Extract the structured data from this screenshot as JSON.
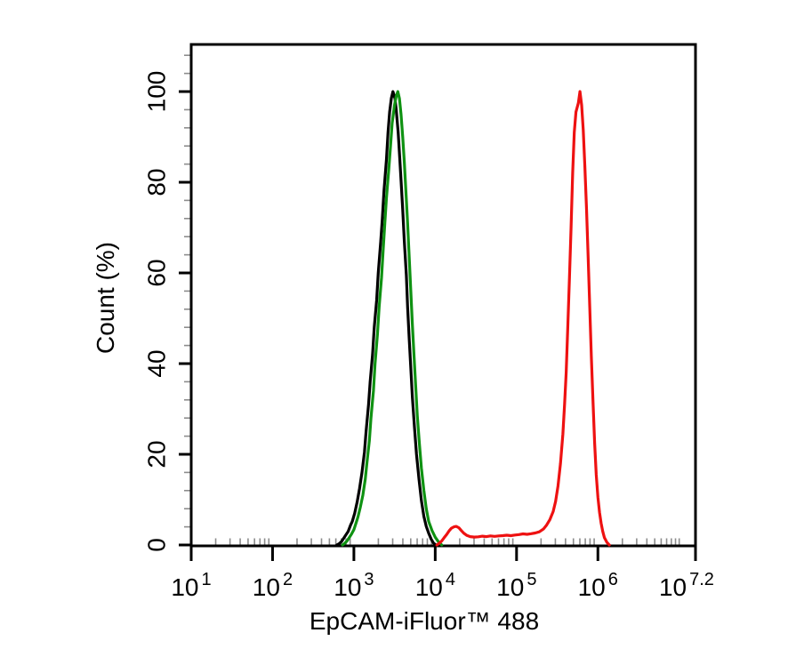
{
  "figure": {
    "background_color": "#ffffff",
    "frame_color": "#000000",
    "minor_tick_color": "#8c8c8c"
  },
  "chart_data": {
    "type": "line",
    "subtype": "flow-cytometry-histogram",
    "title": "",
    "xlabel": "EpCAM-iFluor™ 488",
    "ylabel": "Count (%)",
    "x_scale": "log10",
    "x_range_log": [
      1,
      7.2
    ],
    "ylim": [
      0,
      110
    ],
    "grid": false,
    "legend": "none",
    "y_major_ticks": [
      {
        "value": 0,
        "label": "0"
      },
      {
        "value": 20,
        "label": "20"
      },
      {
        "value": 40,
        "label": "40"
      },
      {
        "value": 60,
        "label": "60"
      },
      {
        "value": 80,
        "label": "80"
      },
      {
        "value": 100,
        "label": "100"
      }
    ],
    "y_minor_step": 4,
    "x_major_ticks": [
      {
        "log": 1,
        "base": "10",
        "exp": "1",
        "center_log": 1.0
      },
      {
        "log": 2,
        "base": "10",
        "exp": "2",
        "center_log": 2.0
      },
      {
        "log": 3,
        "base": "10",
        "exp": "3",
        "center_log": 3.0
      },
      {
        "log": 4,
        "base": "10",
        "exp": "4",
        "center_log": 4.0
      },
      {
        "log": 5,
        "base": "10",
        "exp": "5",
        "center_log": 5.0
      },
      {
        "log": 6,
        "base": "10",
        "exp": "6",
        "center_log": 6.0
      },
      {
        "log": 7.2,
        "base": "10",
        "exp": "7.2",
        "center_log": 7.09
      }
    ],
    "series": [
      {
        "name": "black-curve",
        "color": "#000000",
        "peak_log_x": 3.48,
        "peak_percent": 100,
        "points": [
          [
            2.79,
            0
          ],
          [
            2.82,
            0.3
          ],
          [
            2.85,
            0.8
          ],
          [
            2.88,
            1.6
          ],
          [
            2.9,
            2.2
          ],
          [
            2.93,
            3.0
          ],
          [
            2.96,
            4.4
          ],
          [
            2.98,
            5.2
          ],
          [
            3.01,
            7.0
          ],
          [
            3.04,
            9.5
          ],
          [
            3.07,
            12.5
          ],
          [
            3.1,
            16
          ],
          [
            3.13,
            20.5
          ],
          [
            3.15,
            25
          ],
          [
            3.18,
            31
          ],
          [
            3.2,
            36
          ],
          [
            3.23,
            42
          ],
          [
            3.25,
            48
          ],
          [
            3.28,
            54
          ],
          [
            3.3,
            60
          ],
          [
            3.33,
            67
          ],
          [
            3.35,
            72
          ],
          [
            3.37,
            78
          ],
          [
            3.4,
            85
          ],
          [
            3.42,
            91
          ],
          [
            3.44,
            95.5
          ],
          [
            3.46,
            98.5
          ],
          [
            3.48,
            100
          ],
          [
            3.505,
            98.5
          ],
          [
            3.52,
            96
          ],
          [
            3.545,
            91
          ],
          [
            3.56,
            86.5
          ],
          [
            3.58,
            80.5
          ],
          [
            3.6,
            74
          ],
          [
            3.62,
            67
          ],
          [
            3.645,
            59.5
          ],
          [
            3.66,
            52.5
          ],
          [
            3.68,
            45.5
          ],
          [
            3.7,
            39
          ],
          [
            3.72,
            32.5
          ],
          [
            3.745,
            26
          ],
          [
            3.77,
            20
          ],
          [
            3.8,
            14.5
          ],
          [
            3.83,
            9.8
          ],
          [
            3.86,
            6.3
          ],
          [
            3.89,
            4.1
          ],
          [
            3.92,
            2.6
          ],
          [
            3.95,
            1.3
          ],
          [
            3.98,
            0.4
          ],
          [
            4.01,
            0
          ]
        ]
      },
      {
        "name": "green-curve",
        "color": "#0f9212",
        "peak_log_x": 3.54,
        "peak_percent": 100,
        "points": [
          [
            2.86,
            0
          ],
          [
            2.89,
            0.4
          ],
          [
            2.92,
            1.0
          ],
          [
            2.95,
            1.8
          ],
          [
            2.97,
            2.4
          ],
          [
            3.0,
            3.4
          ],
          [
            3.03,
            5.0
          ],
          [
            3.05,
            6.2
          ],
          [
            3.08,
            8.4
          ],
          [
            3.11,
            11
          ],
          [
            3.14,
            14.5
          ],
          [
            3.16,
            18
          ],
          [
            3.19,
            23
          ],
          [
            3.21,
            28
          ],
          [
            3.24,
            34
          ],
          [
            3.26,
            40
          ],
          [
            3.29,
            46.5
          ],
          [
            3.31,
            52.5
          ],
          [
            3.34,
            59
          ],
          [
            3.36,
            65
          ],
          [
            3.38,
            71
          ],
          [
            3.4,
            76.5
          ],
          [
            3.43,
            83
          ],
          [
            3.45,
            88
          ],
          [
            3.47,
            93
          ],
          [
            3.5,
            97
          ],
          [
            3.52,
            99
          ],
          [
            3.54,
            100
          ],
          [
            3.56,
            98.5
          ],
          [
            3.58,
            95
          ],
          [
            3.6,
            90
          ],
          [
            3.62,
            84.5
          ],
          [
            3.64,
            78
          ],
          [
            3.66,
            71
          ],
          [
            3.68,
            63.5
          ],
          [
            3.7,
            56
          ],
          [
            3.72,
            48.5
          ],
          [
            3.74,
            41.5
          ],
          [
            3.76,
            35
          ],
          [
            3.78,
            28.5
          ],
          [
            3.805,
            22.5
          ],
          [
            3.83,
            17
          ],
          [
            3.86,
            12
          ],
          [
            3.89,
            8
          ],
          [
            3.92,
            5.2
          ],
          [
            3.96,
            3.2
          ],
          [
            4.0,
            1.7
          ],
          [
            4.04,
            0.7
          ],
          [
            4.08,
            0
          ]
        ]
      },
      {
        "name": "red-curve",
        "color": "#ee1111",
        "peak_log_x": 5.78,
        "peak_percent": 100,
        "points": [
          [
            4.02,
            0
          ],
          [
            4.05,
            0.4
          ],
          [
            4.08,
            0.9
          ],
          [
            4.11,
            1.6
          ],
          [
            4.14,
            2.3
          ],
          [
            4.17,
            3.1
          ],
          [
            4.2,
            3.7
          ],
          [
            4.23,
            4.0
          ],
          [
            4.26,
            4.1
          ],
          [
            4.29,
            3.8
          ],
          [
            4.32,
            3.2
          ],
          [
            4.35,
            2.6
          ],
          [
            4.39,
            2.1
          ],
          [
            4.43,
            1.85
          ],
          [
            4.48,
            1.75
          ],
          [
            4.53,
            1.8
          ],
          [
            4.58,
            1.95
          ],
          [
            4.63,
            1.85
          ],
          [
            4.68,
            2.0
          ],
          [
            4.73,
            1.9
          ],
          [
            4.78,
            2.0
          ],
          [
            4.83,
            2.05
          ],
          [
            4.88,
            2.15
          ],
          [
            4.93,
            2.05
          ],
          [
            4.98,
            2.2
          ],
          [
            5.03,
            2.3
          ],
          [
            5.08,
            2.45
          ],
          [
            5.13,
            2.35
          ],
          [
            5.18,
            2.5
          ],
          [
            5.23,
            2.65
          ],
          [
            5.28,
            2.9
          ],
          [
            5.33,
            3.5
          ],
          [
            5.37,
            4.4
          ],
          [
            5.41,
            5.6
          ],
          [
            5.45,
            7.4
          ],
          [
            5.48,
            9.6
          ],
          [
            5.51,
            13
          ],
          [
            5.54,
            18
          ],
          [
            5.57,
            24.5
          ],
          [
            5.59,
            31
          ],
          [
            5.61,
            38
          ],
          [
            5.63,
            48
          ],
          [
            5.65,
            59
          ],
          [
            5.67,
            70
          ],
          [
            5.69,
            82
          ],
          [
            5.71,
            91
          ],
          [
            5.73,
            95.5
          ],
          [
            5.76,
            97.5
          ],
          [
            5.78,
            100
          ],
          [
            5.8,
            97
          ],
          [
            5.82,
            91.5
          ],
          [
            5.84,
            83.5
          ],
          [
            5.86,
            74
          ],
          [
            5.88,
            63.5
          ],
          [
            5.9,
            52.5
          ],
          [
            5.92,
            41.5
          ],
          [
            5.94,
            31.5
          ],
          [
            5.96,
            22.5
          ],
          [
            5.98,
            15.5
          ],
          [
            6.0,
            10.5
          ],
          [
            6.02,
            7.2
          ],
          [
            6.04,
            4.8
          ],
          [
            6.06,
            3.0
          ],
          [
            6.08,
            1.6
          ],
          [
            6.11,
            0.6
          ],
          [
            6.14,
            0
          ]
        ]
      }
    ]
  }
}
